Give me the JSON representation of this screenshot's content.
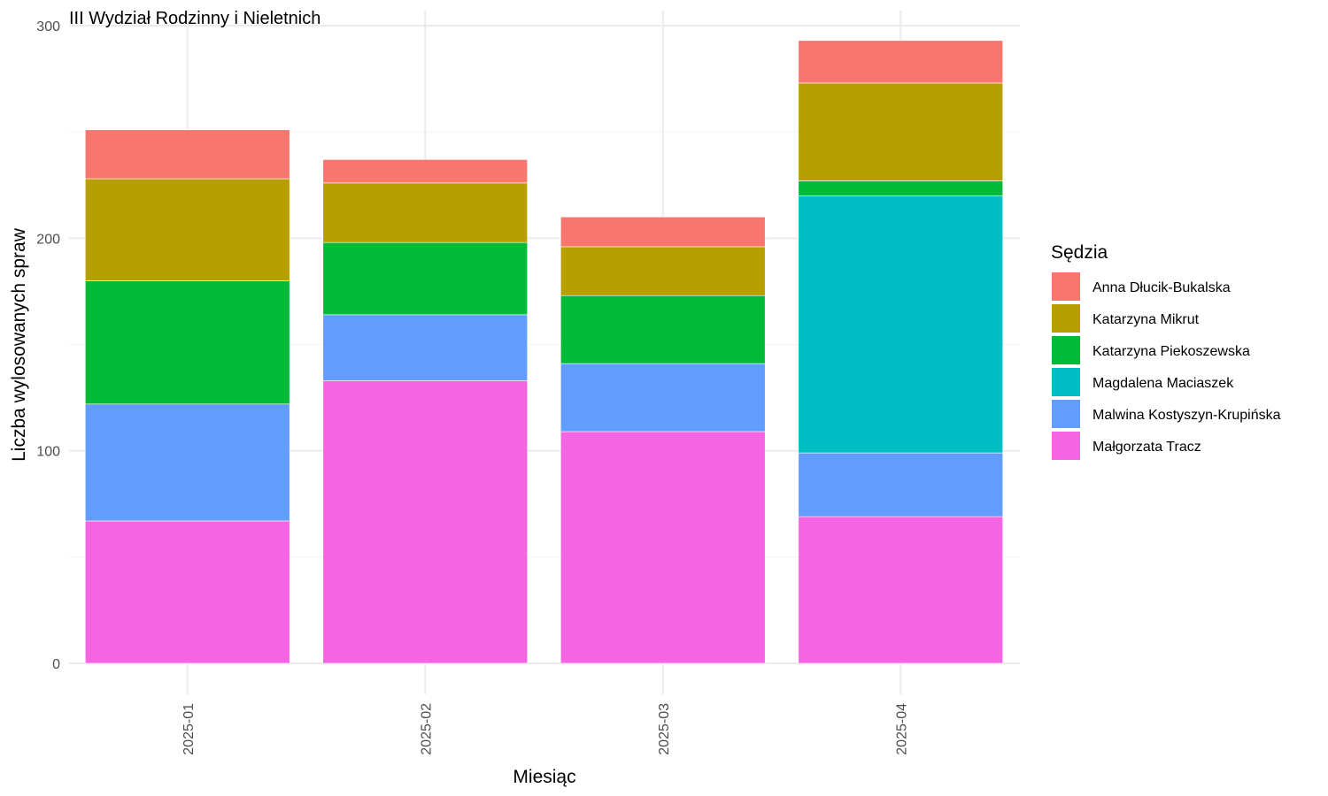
{
  "chart_data": {
    "type": "bar",
    "stacked": true,
    "title": "III Wydział Rodzinny i Nieletnich",
    "xlabel": "Miesiąc",
    "ylabel": "Liczba wylosowanych spraw",
    "ylim": [
      0,
      300
    ],
    "yticks": [
      "0",
      "100",
      "200",
      "300"
    ],
    "grid": true,
    "legend_position": "right",
    "legend_title": "Sędzia",
    "categories": [
      "2025-01",
      "2025-02",
      "2025-03",
      "2025-04"
    ],
    "series": [
      {
        "name": "Małgorzata Tracz",
        "color": "#F564E3",
        "values": [
          67,
          133,
          109,
          69
        ]
      },
      {
        "name": "Malwina Kostyszyn-Krupińska",
        "color": "#619CFF",
        "values": [
          55,
          31,
          32,
          30
        ]
      },
      {
        "name": "Magdalena Maciaszek",
        "color": "#00BFC4",
        "values": [
          0,
          0,
          0,
          121
        ]
      },
      {
        "name": "Katarzyna Piekoszewska",
        "color": "#00BA38",
        "values": [
          58,
          34,
          32,
          7
        ]
      },
      {
        "name": "Katarzyna Mikrut",
        "color": "#B79F00",
        "values": [
          48,
          28,
          23,
          46
        ]
      },
      {
        "name": "Anna Dłucik-Bukalska",
        "color": "#F8766D",
        "values": [
          23,
          11,
          14,
          20
        ]
      }
    ],
    "legend_order": [
      "Anna Dłucik-Bukalska",
      "Katarzyna Mikrut",
      "Katarzyna Piekoszewska",
      "Magdalena Maciaszek",
      "Malwina Kostyszyn-Krupińska",
      "Małgorzata Tracz"
    ]
  }
}
